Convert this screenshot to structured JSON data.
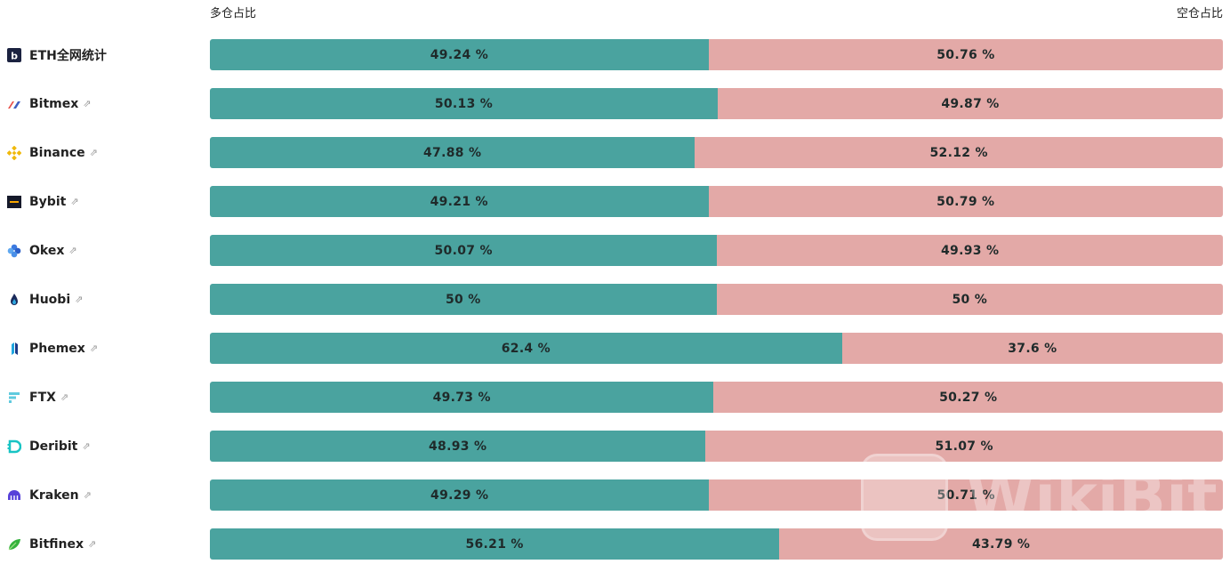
{
  "headers": {
    "long_label": "多仓占比",
    "short_label": "空仓占比"
  },
  "rows": [
    {
      "name": "ETH全网统计",
      "icon": "bybt-logo-icon",
      "long": "49.24 %",
      "short": "50.76 %",
      "long_pct": 49.24,
      "has_link": false
    },
    {
      "name": "Bitmex",
      "icon": "bitmex-logo-icon",
      "long": "50.13 %",
      "short": "49.87 %",
      "long_pct": 50.13,
      "has_link": true
    },
    {
      "name": "Binance",
      "icon": "binance-logo-icon",
      "long": "47.88 %",
      "short": "52.12 %",
      "long_pct": 47.88,
      "has_link": true
    },
    {
      "name": "Bybit",
      "icon": "bybit-logo-icon",
      "long": "49.21 %",
      "short": "50.79 %",
      "long_pct": 49.21,
      "has_link": true
    },
    {
      "name": "Okex",
      "icon": "okex-logo-icon",
      "long": "50.07 %",
      "short": "49.93 %",
      "long_pct": 50.07,
      "has_link": true
    },
    {
      "name": "Huobi",
      "icon": "huobi-logo-icon",
      "long": "50 %",
      "short": "50 %",
      "long_pct": 50,
      "has_link": true
    },
    {
      "name": "Phemex",
      "icon": "phemex-logo-icon",
      "long": "62.4 %",
      "short": "37.6 %",
      "long_pct": 62.4,
      "has_link": true
    },
    {
      "name": "FTX",
      "icon": "ftx-logo-icon",
      "long": "49.73 %",
      "short": "50.27 %",
      "long_pct": 49.73,
      "has_link": true
    },
    {
      "name": "Deribit",
      "icon": "deribit-logo-icon",
      "long": "48.93 %",
      "short": "51.07 %",
      "long_pct": 48.93,
      "has_link": true
    },
    {
      "name": "Kraken",
      "icon": "kraken-logo-icon",
      "long": "49.29 %",
      "short": "50.71 %",
      "long_pct": 49.29,
      "has_link": true
    },
    {
      "name": "Bitfinex",
      "icon": "bitfinex-logo-icon",
      "long": "56.21 %",
      "short": "43.79 %",
      "long_pct": 56.21,
      "has_link": true
    }
  ],
  "link_glyph": "⇗",
  "colors": {
    "long": "#4aa39f",
    "short": "#e3a9a7"
  },
  "watermark": "WikiBit"
}
